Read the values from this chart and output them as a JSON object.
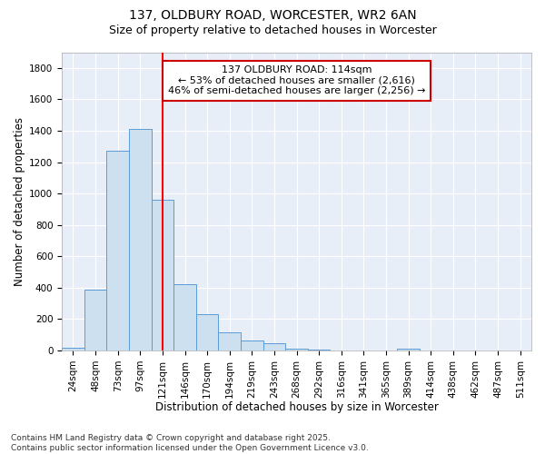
{
  "title_line1": "137, OLDBURY ROAD, WORCESTER, WR2 6AN",
  "title_line2": "Size of property relative to detached houses in Worcester",
  "xlabel": "Distribution of detached houses by size in Worcester",
  "ylabel": "Number of detached properties",
  "categories": [
    "24sqm",
    "48sqm",
    "73sqm",
    "97sqm",
    "121sqm",
    "146sqm",
    "170sqm",
    "194sqm",
    "219sqm",
    "243sqm",
    "268sqm",
    "292sqm",
    "316sqm",
    "341sqm",
    "365sqm",
    "389sqm",
    "414sqm",
    "438sqm",
    "462sqm",
    "487sqm",
    "511sqm"
  ],
  "values": [
    20,
    390,
    1270,
    1410,
    960,
    420,
    230,
    115,
    65,
    45,
    10,
    5,
    0,
    0,
    0,
    10,
    0,
    0,
    0,
    0,
    0
  ],
  "bar_color": "#cce0f0",
  "bar_edge_color": "#5b9bd5",
  "red_line_x": 4,
  "property_label": "137 OLDBURY ROAD: 114sqm",
  "annotation_line2": "← 53% of detached houses are smaller (2,616)",
  "annotation_line3": "46% of semi-detached houses are larger (2,256) →",
  "annotation_box_facecolor": "#ffffff",
  "annotation_box_edgecolor": "#cc0000",
  "ylim": [
    0,
    1900
  ],
  "yticks": [
    0,
    200,
    400,
    600,
    800,
    1000,
    1200,
    1400,
    1600,
    1800
  ],
  "bg_color": "#ffffff",
  "plot_bg_color": "#e8eef8",
  "grid_color": "#ffffff",
  "title_fontsize": 10,
  "subtitle_fontsize": 9,
  "axis_label_fontsize": 8.5,
  "tick_fontsize": 7.5,
  "annotation_fontsize": 8,
  "footer_fontsize": 6.5
}
